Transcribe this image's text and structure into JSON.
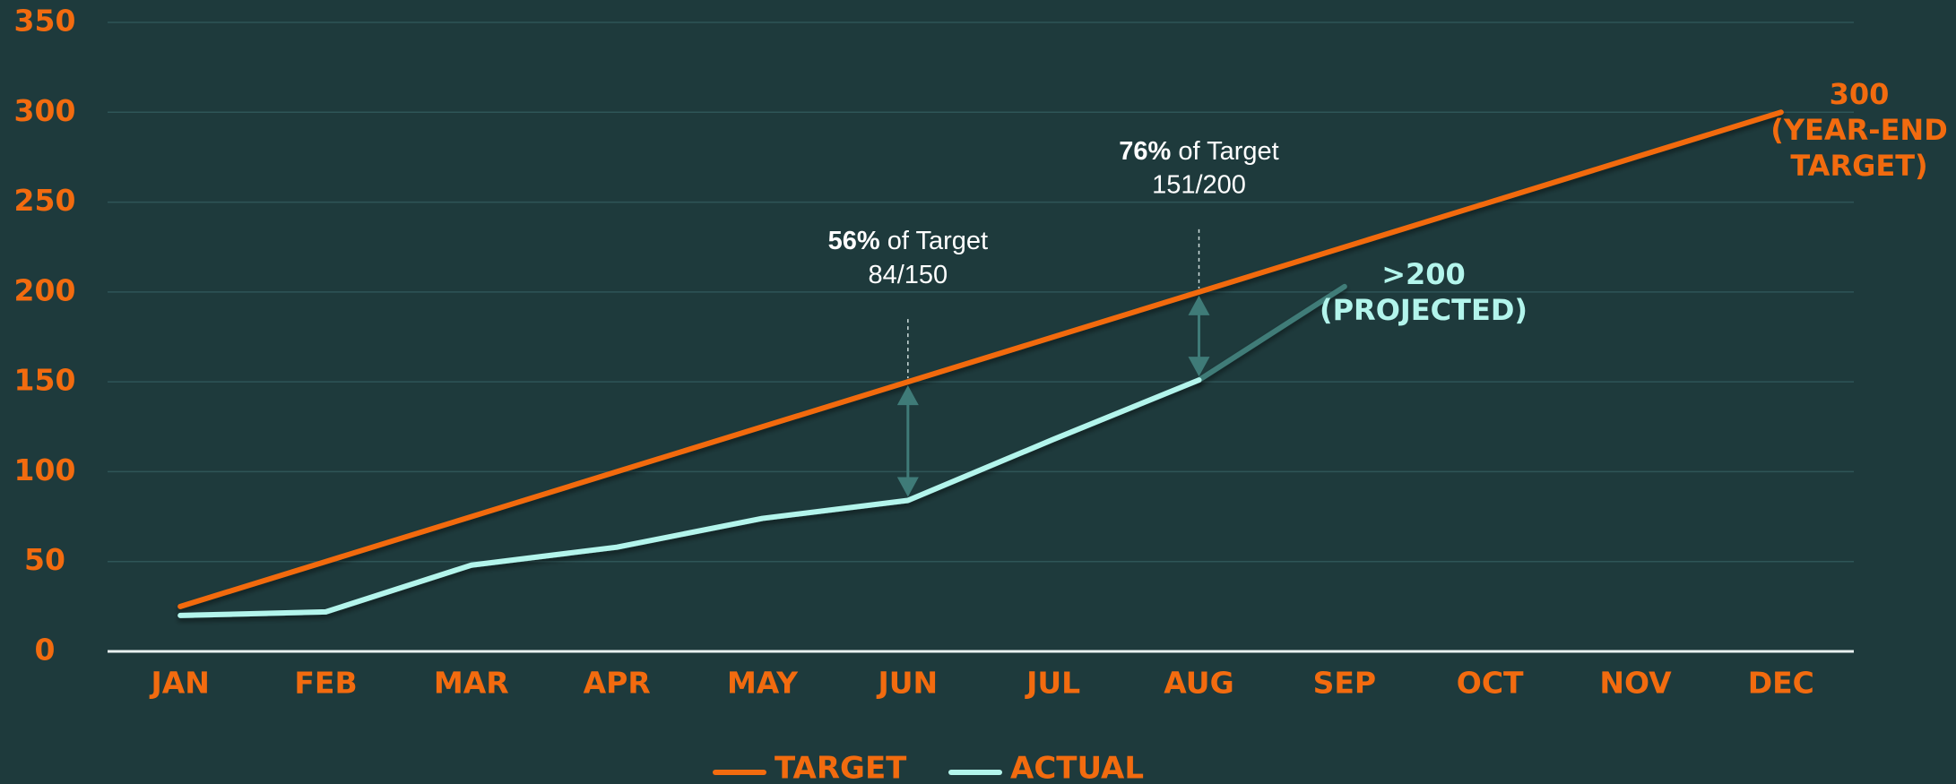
{
  "chart_data": {
    "type": "line",
    "categories": [
      "JAN",
      "FEB",
      "MAR",
      "APR",
      "MAY",
      "JUN",
      "JUL",
      "AUG",
      "SEP",
      "OCT",
      "NOV",
      "DEC"
    ],
    "series": [
      {
        "name": "TARGET",
        "color": "#f26b0f",
        "values": [
          25,
          50,
          75,
          100,
          125,
          150,
          175,
          200,
          225,
          250,
          275,
          300
        ]
      },
      {
        "name": "ACTUAL",
        "color": "#b3f5ec",
        "values": [
          20,
          22,
          48,
          58,
          74,
          84,
          118,
          151,
          null,
          null,
          null,
          null
        ]
      }
    ],
    "projection": {
      "color": "#3f7b78",
      "values": [
        null,
        null,
        null,
        null,
        null,
        null,
        null,
        151,
        203,
        null,
        null,
        null
      ],
      "label": [
        ">200",
        "(PROJECTED)"
      ]
    },
    "ylim": [
      0,
      350
    ],
    "yticks": [
      0,
      50,
      100,
      150,
      200,
      250,
      300,
      350
    ],
    "grid": true,
    "target_label": [
      "300",
      "(YEAR-END",
      "TARGET)"
    ],
    "annotations": [
      {
        "category": 5,
        "bold": "56%",
        "text": "of Target",
        "detail": "84/150"
      },
      {
        "category": 7,
        "bold": "76%",
        "text": "of Target",
        "detail": "151/200"
      }
    ]
  }
}
